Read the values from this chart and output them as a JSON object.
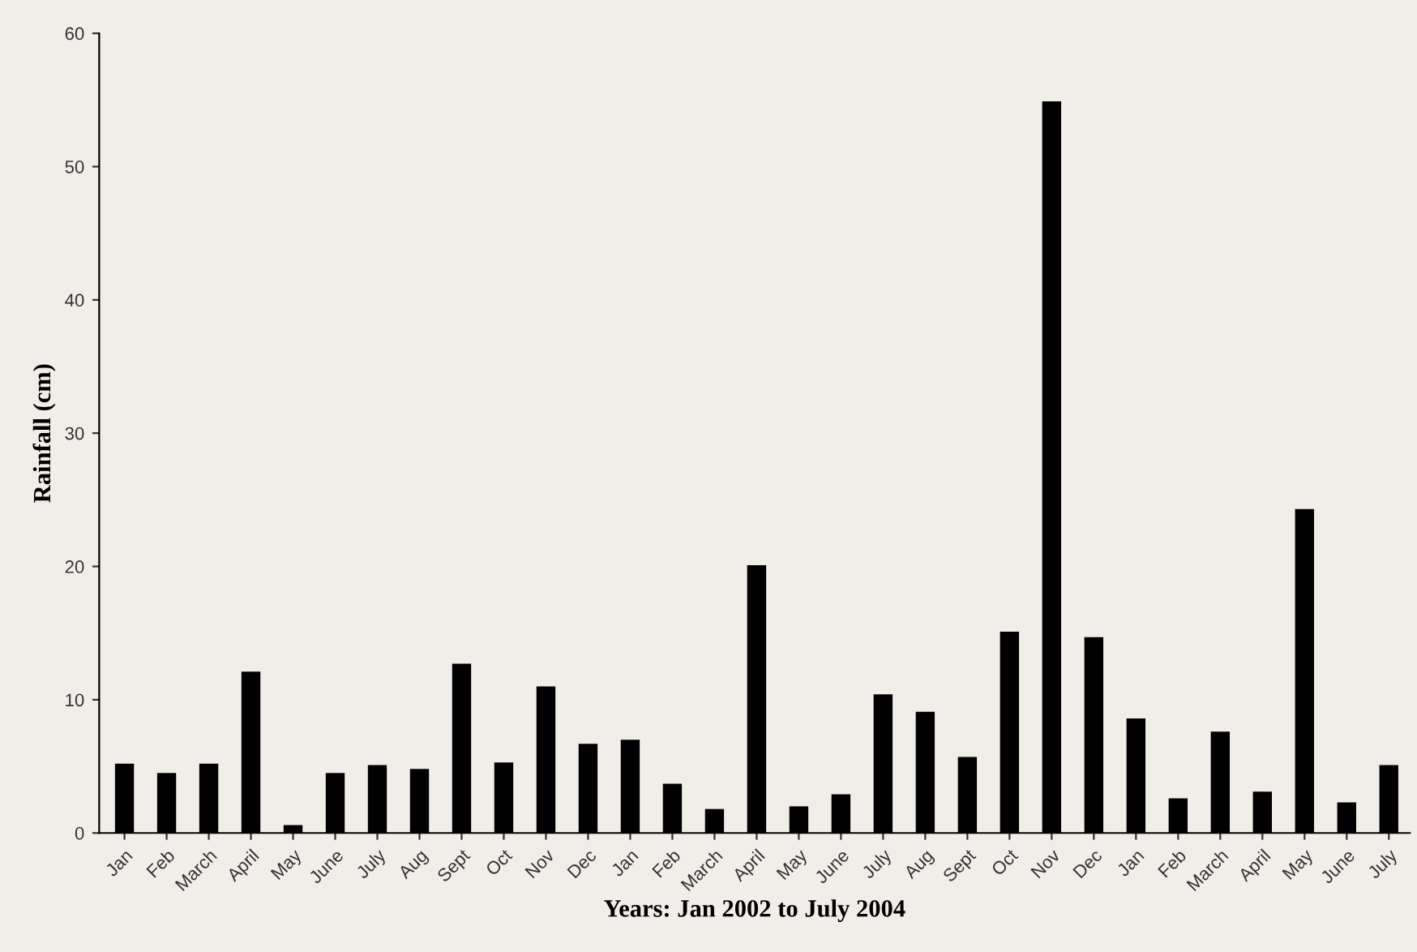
{
  "chart_data": {
    "type": "bar",
    "xlabel": "Years: Jan 2002 to July 2004",
    "ylabel": "Rainfall (cm)",
    "categories": [
      "Jan",
      "Feb",
      "March",
      "April",
      "May",
      "June",
      "July",
      "Aug",
      "Sept",
      "Oct",
      "Nov",
      "Dec",
      "Jan",
      "Feb",
      "March",
      "April",
      "May",
      "June",
      "July",
      "Aug",
      "Sept",
      "Oct",
      "Nov",
      "Dec",
      "Jan",
      "Feb",
      "March",
      "April",
      "May",
      "June",
      "July"
    ],
    "values": [
      5.2,
      4.5,
      5.2,
      12.1,
      0.6,
      4.5,
      5.1,
      4.8,
      12.7,
      5.3,
      11.0,
      6.7,
      7.0,
      3.7,
      1.8,
      20.1,
      2.0,
      2.9,
      10.4,
      9.1,
      5.7,
      15.1,
      54.9,
      14.7,
      8.6,
      2.6,
      7.6,
      3.1,
      24.3,
      2.3,
      5.1
    ],
    "color": "#000000",
    "ylim": [
      0,
      60
    ],
    "yticks": [
      0,
      10,
      20,
      30,
      40,
      50,
      60
    ],
    "grid": false,
    "legend": false
  }
}
